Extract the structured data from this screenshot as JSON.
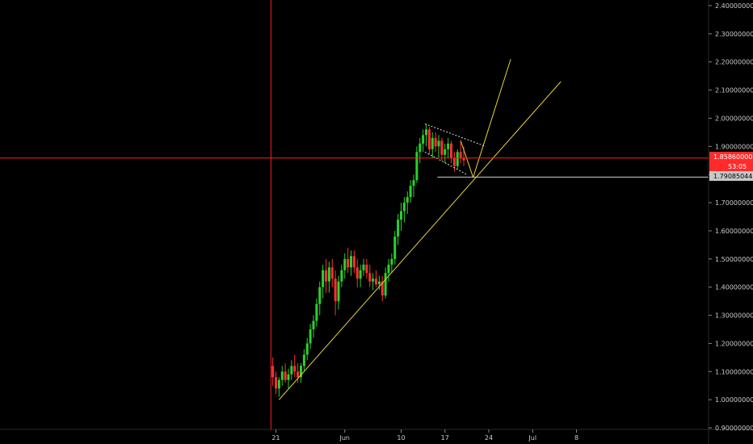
{
  "chart_data": {
    "type": "candlestick",
    "y_ticks": [
      "2.40000000",
      "2.30000000",
      "2.20000000",
      "2.10000000",
      "2.00000000",
      "1.90000000",
      "1.80000000",
      "1.70000000",
      "1.60000000",
      "1.50000000",
      "1.40000000",
      "1.30000000",
      "1.20000000",
      "1.10000000",
      "1.00000000",
      "0.90000000"
    ],
    "y_tick_values": [
      2.4,
      2.3,
      2.2,
      2.1,
      2.0,
      1.9,
      1.8,
      1.7,
      1.6,
      1.5,
      1.4,
      1.3,
      1.2,
      1.1,
      1.0,
      0.9
    ],
    "ylim": [
      0.9,
      2.4
    ],
    "x_ticks": [
      "21",
      "Jun",
      "10",
      "17",
      "24",
      "Jul",
      "8"
    ],
    "x_tick_days": [
      0,
      11,
      20,
      27,
      34,
      41,
      48
    ],
    "xlim_days": [
      -41,
      77
    ],
    "crosshair": {
      "day": -0.8,
      "price": 1.8586
    },
    "price_tags": {
      "crosshair_price": "1.85860000",
      "countdown": "53:05",
      "horizontal_line_price": "1.79085044"
    },
    "horizontal_line": {
      "value": 1.79085044,
      "from_day": 25.8
    },
    "trendline": {
      "start": [
        0.5,
        1.0
      ],
      "through": [
        31.5,
        1.79
      ],
      "end": [
        45.5,
        2.13
      ]
    },
    "projection": {
      "points": [
        [
          31.5,
          1.79
        ],
        [
          37.5,
          2.21
        ]
      ]
    },
    "channel": {
      "upper": [
        [
          23.8,
          1.98
        ],
        [
          33.5,
          1.9
        ]
      ],
      "lower": [
        [
          23.8,
          1.88
        ],
        [
          30.5,
          1.8
        ]
      ]
    },
    "drop_line": {
      "points": [
        [
          29.5,
          1.92
        ],
        [
          31.5,
          1.79
        ]
      ]
    },
    "candles": [
      [
        -0.5,
        1.12,
        1.15,
        1.05,
        1.08
      ],
      [
        0,
        1.08,
        1.1,
        1.02,
        1.04
      ],
      [
        0.5,
        1.04,
        1.08,
        1.01,
        1.07
      ],
      [
        1,
        1.07,
        1.12,
        1.05,
        1.1
      ],
      [
        1.5,
        1.1,
        1.13,
        1.06,
        1.07
      ],
      [
        2,
        1.07,
        1.11,
        1.04,
        1.09
      ],
      [
        2.5,
        1.09,
        1.14,
        1.07,
        1.12
      ],
      [
        3,
        1.12,
        1.16,
        1.08,
        1.1
      ],
      [
        3.5,
        1.1,
        1.13,
        1.06,
        1.08
      ],
      [
        4,
        1.08,
        1.13,
        1.06,
        1.12
      ],
      [
        4.5,
        1.12,
        1.18,
        1.1,
        1.16
      ],
      [
        5,
        1.16,
        1.22,
        1.14,
        1.2
      ],
      [
        5.5,
        1.2,
        1.27,
        1.18,
        1.25
      ],
      [
        6,
        1.25,
        1.3,
        1.22,
        1.28
      ],
      [
        6.5,
        1.28,
        1.36,
        1.26,
        1.34
      ],
      [
        7,
        1.34,
        1.42,
        1.3,
        1.4
      ],
      [
        7.5,
        1.4,
        1.48,
        1.36,
        1.46
      ],
      [
        8,
        1.46,
        1.5,
        1.38,
        1.42
      ],
      [
        8.5,
        1.42,
        1.49,
        1.38,
        1.47
      ],
      [
        9,
        1.47,
        1.5,
        1.4,
        1.43
      ],
      [
        9.5,
        1.43,
        1.46,
        1.3,
        1.35
      ],
      [
        10,
        1.35,
        1.44,
        1.32,
        1.42
      ],
      [
        10.5,
        1.42,
        1.48,
        1.4,
        1.46
      ],
      [
        11,
        1.46,
        1.52,
        1.43,
        1.5
      ],
      [
        11.5,
        1.5,
        1.54,
        1.45,
        1.47
      ],
      [
        12,
        1.47,
        1.53,
        1.44,
        1.51
      ],
      [
        12.5,
        1.51,
        1.53,
        1.45,
        1.47
      ],
      [
        13,
        1.47,
        1.5,
        1.4,
        1.43
      ],
      [
        13.5,
        1.43,
        1.48,
        1.4,
        1.46
      ],
      [
        14,
        1.46,
        1.5,
        1.44,
        1.48
      ],
      [
        14.5,
        1.48,
        1.5,
        1.43,
        1.45
      ],
      [
        15,
        1.45,
        1.48,
        1.4,
        1.42
      ],
      [
        15.5,
        1.42,
        1.45,
        1.39,
        1.43
      ],
      [
        16,
        1.43,
        1.46,
        1.4,
        1.41
      ],
      [
        16.5,
        1.41,
        1.44,
        1.39,
        1.42
      ],
      [
        17,
        1.42,
        1.44,
        1.35,
        1.37
      ],
      [
        17.5,
        1.37,
        1.47,
        1.36,
        1.45
      ],
      [
        18,
        1.45,
        1.5,
        1.42,
        1.48
      ],
      [
        18.5,
        1.48,
        1.52,
        1.45,
        1.5
      ],
      [
        19,
        1.5,
        1.6,
        1.48,
        1.58
      ],
      [
        19.5,
        1.58,
        1.66,
        1.55,
        1.64
      ],
      [
        20,
        1.64,
        1.7,
        1.6,
        1.67
      ],
      [
        20.5,
        1.67,
        1.72,
        1.63,
        1.7
      ],
      [
        21,
        1.7,
        1.74,
        1.66,
        1.72
      ],
      [
        21.5,
        1.72,
        1.78,
        1.7,
        1.76
      ],
      [
        22,
        1.76,
        1.8,
        1.72,
        1.78
      ],
      [
        22.5,
        1.78,
        1.9,
        1.77,
        1.88
      ],
      [
        23,
        1.88,
        1.93,
        1.84,
        1.91
      ],
      [
        23.5,
        1.91,
        1.96,
        1.88,
        1.94
      ],
      [
        24,
        1.94,
        1.98,
        1.9,
        1.96
      ],
      [
        24.5,
        1.96,
        1.97,
        1.87,
        1.89
      ],
      [
        25,
        1.89,
        1.95,
        1.86,
        1.93
      ],
      [
        25.5,
        1.93,
        1.95,
        1.88,
        1.9
      ],
      [
        26,
        1.9,
        1.94,
        1.86,
        1.92
      ],
      [
        26.5,
        1.92,
        1.93,
        1.85,
        1.87
      ],
      [
        27,
        1.87,
        1.91,
        1.84,
        1.89
      ],
      [
        27.5,
        1.89,
        1.93,
        1.86,
        1.91
      ],
      [
        28,
        1.91,
        1.92,
        1.84,
        1.86
      ],
      [
        28.5,
        1.86,
        1.88,
        1.81,
        1.83
      ],
      [
        29,
        1.83,
        1.89,
        1.82,
        1.88
      ],
      [
        29.5,
        1.88,
        1.92,
        1.84,
        1.86
      ],
      [
        30,
        1.86,
        1.9,
        1.83,
        1.85
      ]
    ]
  }
}
